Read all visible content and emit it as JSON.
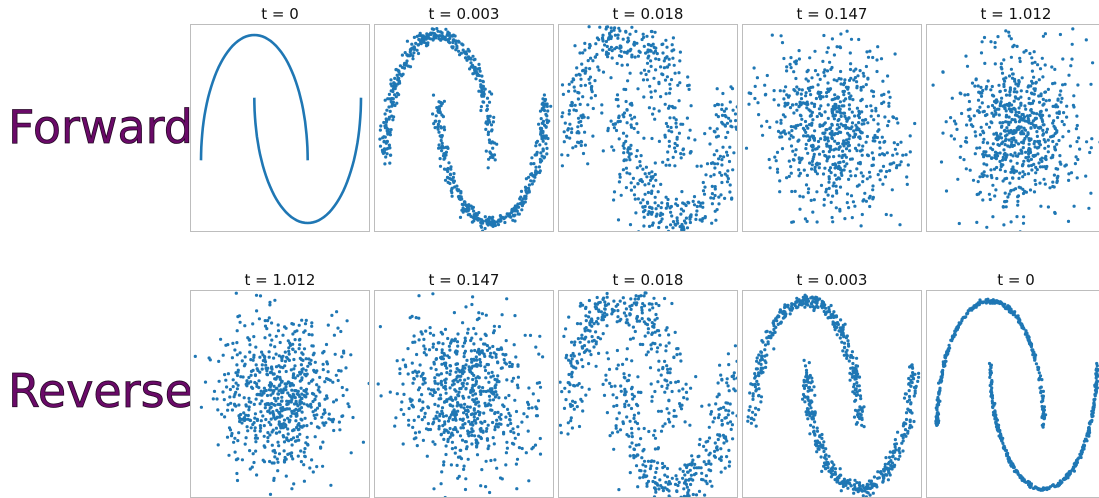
{
  "rows": [
    {
      "label": "Forward"
    },
    {
      "label": "Reverse"
    }
  ],
  "colors": {
    "points": "#1f77b4",
    "label": "#6a0a68",
    "frame": "#bdbdbd"
  },
  "chart_data": [
    {
      "type": "scatter",
      "title": "t = 0",
      "row": "Forward",
      "style": "line"
    },
    {
      "type": "scatter",
      "title": "t = 0.003",
      "row": "Forward"
    },
    {
      "type": "scatter",
      "title": "t = 0.018",
      "row": "Forward"
    },
    {
      "type": "scatter",
      "title": "t = 0.147",
      "row": "Forward"
    },
    {
      "type": "scatter",
      "title": "t = 1.012",
      "row": "Forward"
    },
    {
      "type": "scatter",
      "title": "t = 1.012",
      "row": "Reverse"
    },
    {
      "type": "scatter",
      "title": "t = 0.147",
      "row": "Reverse"
    },
    {
      "type": "scatter",
      "title": "t = 0.018",
      "row": "Reverse"
    },
    {
      "type": "scatter",
      "title": "t = 0.003",
      "row": "Reverse"
    },
    {
      "type": "scatter",
      "title": "t = 0",
      "row": "Reverse"
    }
  ]
}
